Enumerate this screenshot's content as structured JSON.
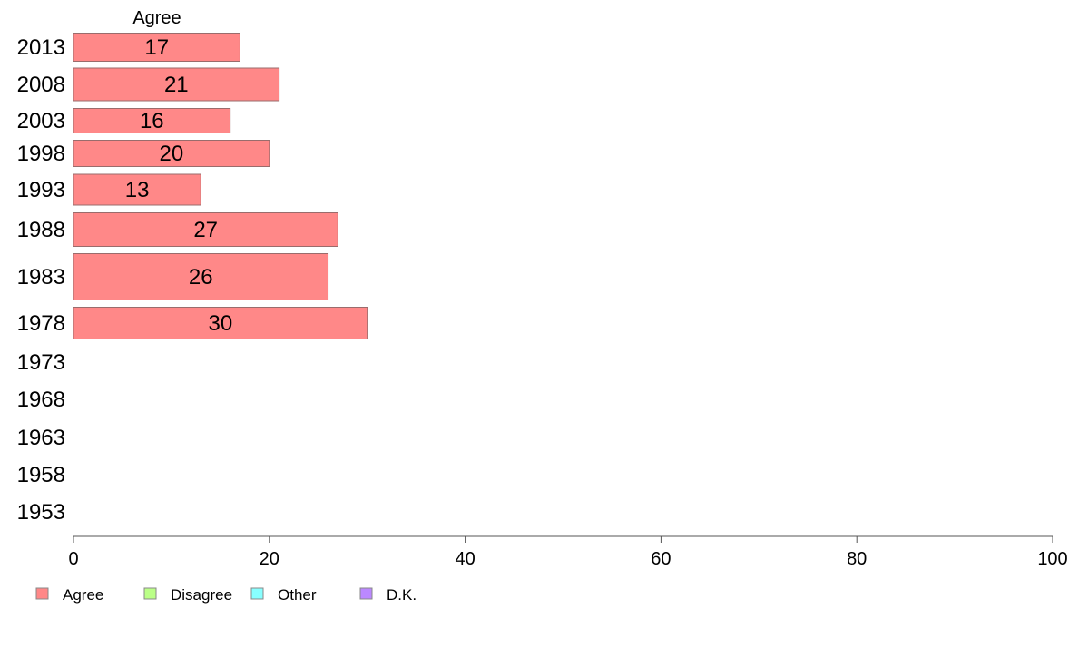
{
  "chart_data": {
    "type": "bar",
    "orientation": "horizontal",
    "title": "",
    "xlabel": "",
    "ylabel": "",
    "xlim": [
      0,
      100
    ],
    "x_ticks": [
      0,
      20,
      40,
      60,
      80,
      100
    ],
    "grid": false,
    "legend_position": "bottom-left",
    "column_header": "Agree",
    "categories": [
      "2013",
      "2008",
      "2003",
      "1998",
      "1993",
      "1988",
      "1983",
      "1978",
      "1973",
      "1968",
      "1963",
      "1958",
      "1953"
    ],
    "series": [
      {
        "name": "Agree",
        "color": "#ff8888",
        "values": [
          17,
          21,
          16,
          20,
          13,
          27,
          26,
          30,
          null,
          null,
          null,
          null,
          null
        ],
        "data_labels": [
          "17",
          "21",
          "16",
          "20",
          "13",
          "27",
          "26",
          "30",
          null,
          null,
          null,
          null,
          null
        ]
      }
    ],
    "legend": [
      {
        "name": "Agree",
        "color": "#ff8888"
      },
      {
        "name": "Disagree",
        "color": "#bbff88"
      },
      {
        "name": "Other",
        "color": "#88ffff"
      },
      {
        "name": "D.K.",
        "color": "#bb88ff"
      }
    ]
  }
}
